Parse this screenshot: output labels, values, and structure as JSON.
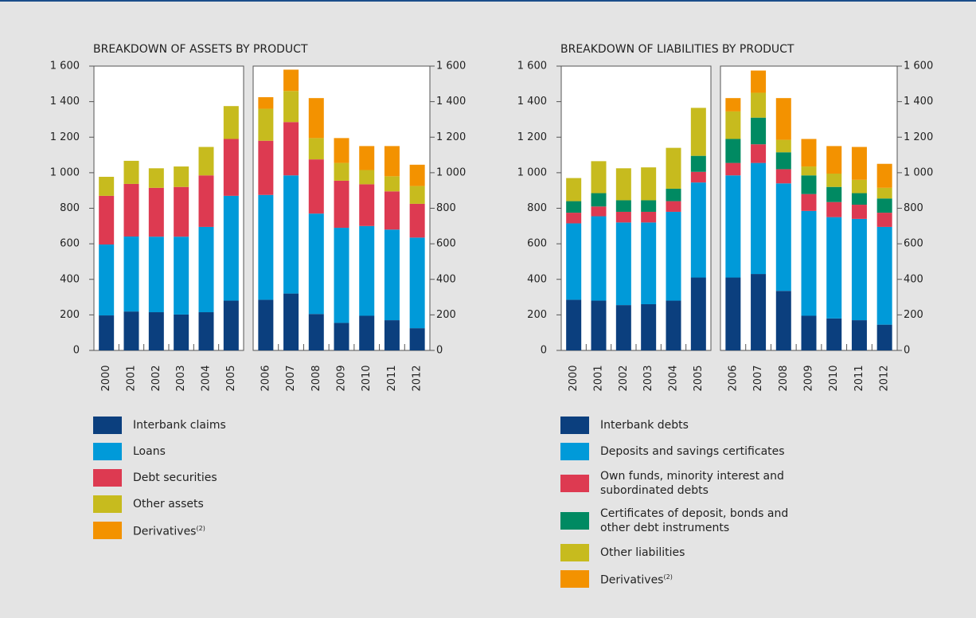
{
  "chart_data": [
    {
      "type": "bar",
      "stacked": true,
      "title": "BREAKDOWN OF ASSETS BY PRODUCT",
      "categories": [
        "2000",
        "2001",
        "2002",
        "2003",
        "2004",
        "2005",
        "2006",
        "2007",
        "2008",
        "2009",
        "2010",
        "2011",
        "2012"
      ],
      "ylim": [
        0,
        1600
      ],
      "yticks": [
        0,
        200,
        400,
        600,
        800,
        {
          "value": 1000,
          "label": "1 000"
        },
        {
          "value": 1200,
          "label": "1 200"
        },
        {
          "value": 1400,
          "label": "1 400"
        },
        {
          "value": 1600,
          "label": "1 600"
        }
      ],
      "series": [
        {
          "name": "Interbank claims",
          "color": "#0b3f7e",
          "values": [
            197,
            219,
            215,
            202,
            215,
            280,
            285,
            320,
            205,
            155,
            195,
            170,
            125
          ]
        },
        {
          "name": "Loans",
          "color": "#009ad9",
          "values": [
            399,
            422,
            425,
            438,
            480,
            590,
            590,
            665,
            565,
            535,
            505,
            510,
            510
          ]
        },
        {
          "name": "Debt securities",
          "color": "#dd3a51",
          "values": [
            274,
            296,
            275,
            280,
            290,
            320,
            305,
            300,
            305,
            265,
            235,
            215,
            190
          ]
        },
        {
          "name": "Other assets",
          "color": "#c7bb1e",
          "values": [
            107,
            130,
            110,
            115,
            160,
            185,
            180,
            175,
            120,
            100,
            80,
            85,
            100
          ]
        },
        {
          "name": "Derivatives",
          "legend_footnote": "(2)",
          "color": "#f39200",
          "values": [
            0,
            0,
            0,
            0,
            0,
            0,
            65,
            120,
            225,
            140,
            135,
            170,
            120
          ]
        }
      ]
    },
    {
      "type": "bar",
      "stacked": true,
      "title": "BREAKDOWN OF LIABILITIES BY PRODUCT",
      "categories": [
        "2000",
        "2001",
        "2002",
        "2003",
        "2004",
        "2005",
        "2006",
        "2007",
        "2008",
        "2009",
        "2010",
        "2011",
        "2012"
      ],
      "ylim": [
        0,
        1600
      ],
      "yticks": [
        0,
        200,
        400,
        600,
        800,
        {
          "value": 1000,
          "label": "1 000"
        },
        {
          "value": 1200,
          "label": "1 200"
        },
        {
          "value": 1400,
          "label": "1 400"
        },
        {
          "value": 1600,
          "label": "1 600"
        }
      ],
      "series": [
        {
          "name": "Interbank debts",
          "color": "#0b3f7e",
          "values": [
            285,
            280,
            255,
            260,
            280,
            410,
            410,
            430,
            335,
            195,
            180,
            170,
            145
          ]
        },
        {
          "name": "Deposits and savings certificates",
          "color": "#009ad9",
          "values": [
            430,
            475,
            465,
            460,
            500,
            535,
            575,
            625,
            605,
            590,
            570,
            570,
            550
          ]
        },
        {
          "name": "Own funds, minority interest and subordinated debts",
          "color": "#dd3a51",
          "values": [
            60,
            55,
            60,
            60,
            60,
            60,
            70,
            105,
            80,
            95,
            85,
            80,
            80
          ]
        },
        {
          "name": "Certificates of deposit, bonds and other debt instruments",
          "color": "#008a62",
          "values": [
            65,
            75,
            65,
            65,
            70,
            90,
            135,
            150,
            95,
            105,
            85,
            65,
            80
          ]
        },
        {
          "name": "Other liabilities",
          "color": "#c7bb1e",
          "values": [
            130,
            180,
            180,
            185,
            230,
            270,
            155,
            140,
            70,
            50,
            75,
            75,
            60
          ]
        },
        {
          "name": "Derivatives",
          "legend_footnote": "(2)",
          "color": "#f39200",
          "values": [
            0,
            0,
            0,
            0,
            0,
            0,
            75,
            125,
            235,
            155,
            155,
            185,
            135
          ]
        }
      ]
    }
  ]
}
